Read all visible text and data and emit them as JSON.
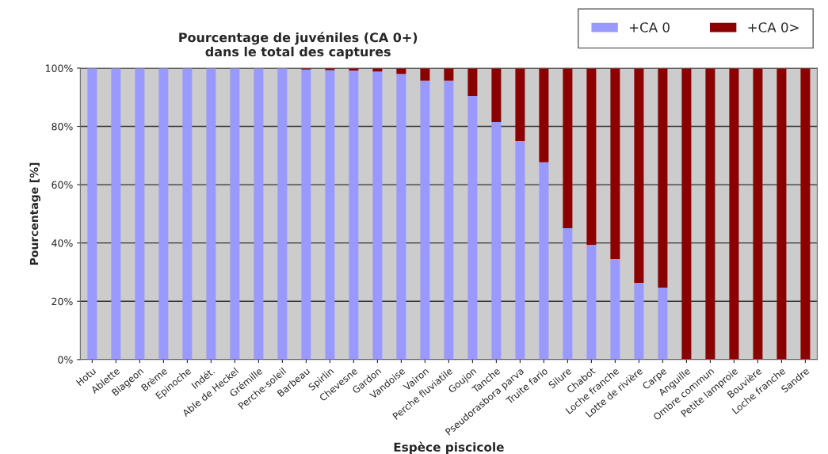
{
  "chart_data": {
    "type": "bar",
    "stacked": true,
    "title": "Pourcentage de juvéniles (CA 0+)\ndans le total des captures",
    "xlabel": "Espèce piscicole",
    "ylabel": "Pourcentage [%]",
    "categories": [
      "Hotu",
      "Ablette",
      "Blageon",
      "Brème",
      "Epinoche",
      "Indét.",
      "Able de Heckel",
      "Grémille",
      "Perche-soleil",
      "Barbeau",
      "Spirlin",
      "Chevesne",
      "Gardon",
      "Vandoise",
      "Vairon",
      "Perche fluviatile",
      "Goujon",
      "Tanche",
      "Pseudorasbora parva",
      "Truite fario",
      "Silure",
      "Chabot",
      "Loche franche",
      "Lotte de rivière",
      "Carpe",
      "Anguille",
      "Ombre commun",
      "Petite lamproie",
      "Bouvière",
      "Loche franche",
      "Sandre"
    ],
    "series": [
      {
        "name": "+CA 0",
        "color": "#9999ff",
        "values": [
          100,
          100,
          100,
          100,
          100,
          100,
          100,
          100,
          100,
          99.5,
          99.3,
          99.2,
          98.8,
          98,
          95.7,
          95.7,
          90.5,
          81.5,
          75,
          67.7,
          45.1,
          39.4,
          34.5,
          26.3,
          24.7,
          0,
          0,
          0,
          0,
          0,
          0
        ]
      },
      {
        "name": "+CA 0>",
        "color": "#8b0000",
        "values": [
          0,
          0,
          0,
          0,
          0,
          0,
          0,
          0,
          0,
          0.5,
          0.7,
          0.8,
          1.2,
          2,
          4.3,
          4.3,
          9.5,
          18.5,
          25,
          32.3,
          54.9,
          60.6,
          65.5,
          73.7,
          75.3,
          100,
          100,
          100,
          100,
          100,
          100
        ]
      }
    ],
    "ylim": [
      0,
      100
    ],
    "yticks": [
      {
        "value": 0,
        "label": "0%"
      },
      {
        "value": 20,
        "label": "20%"
      },
      {
        "value": 40,
        "label": "40%"
      },
      {
        "value": 60,
        "label": "60%"
      },
      {
        "value": 80,
        "label": "80%"
      },
      {
        "value": 100,
        "label": "100%"
      }
    ],
    "grid": "y",
    "legend": "top right"
  }
}
